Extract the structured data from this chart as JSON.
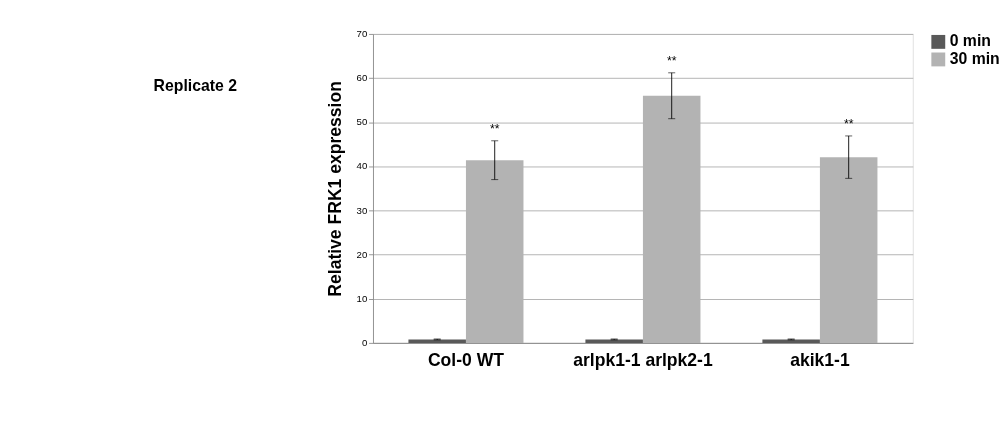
{
  "chart_data": {
    "type": "bar",
    "title": "Replicate 2",
    "ylabel": "Relative FRK1 expression",
    "categories": [
      "Col-0 WT",
      "arlpk1-1 arlpk2-1",
      "akik1-1"
    ],
    "series": [
      {
        "name": "0 min",
        "color": "#595959",
        "values": [
          0.8,
          0.8,
          0.8
        ],
        "errors": [
          0.1,
          0.1,
          0.1
        ]
      },
      {
        "name": "30 min",
        "color": "#b3b3b3",
        "values": [
          41.4,
          56,
          42.1
        ],
        "errors": [
          4.4,
          5.2,
          4.8
        ]
      }
    ],
    "ylim": [
      0,
      70
    ],
    "yticks": [
      0,
      10,
      20,
      30,
      40,
      50,
      60,
      70
    ],
    "grid": "y",
    "legend": "right",
    "annotations": [
      "**",
      "**",
      "**"
    ]
  }
}
